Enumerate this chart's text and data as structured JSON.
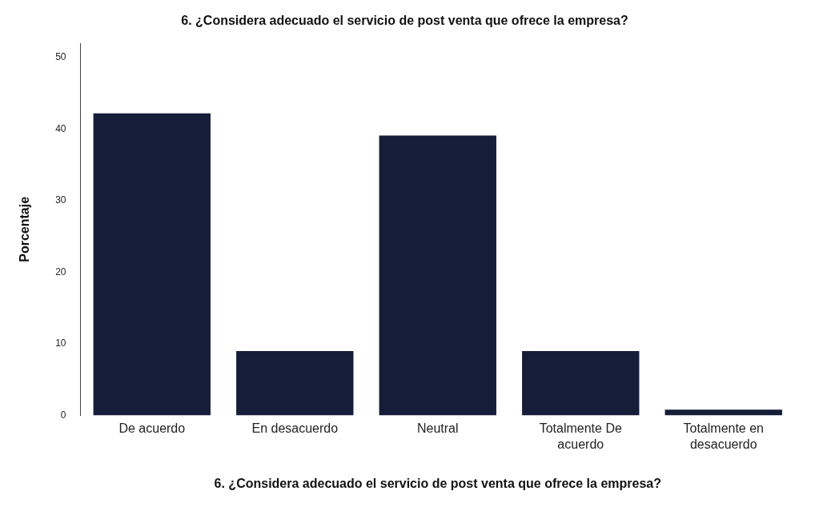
{
  "chart_data": {
    "type": "bar",
    "title": "6. ¿Considera adecuado el servicio de post venta que ofrece la empresa?",
    "xlabel": "6. ¿Considera adecuado el servicio de post venta que ofrece la empresa?",
    "ylabel": "Porcentaje",
    "categories": [
      "De acuerdo",
      "En desacuerdo",
      "Neutral",
      "Totalmente De acuerdo",
      "Totalmente en desacuerdo"
    ],
    "values": [
      42.2,
      9,
      39.1,
      9,
      0.8
    ],
    "color": "#161d38",
    "ylim": [
      0,
      52
    ],
    "yticks": [
      0,
      10,
      20,
      30,
      40,
      50
    ],
    "grid": false,
    "legend": false
  }
}
